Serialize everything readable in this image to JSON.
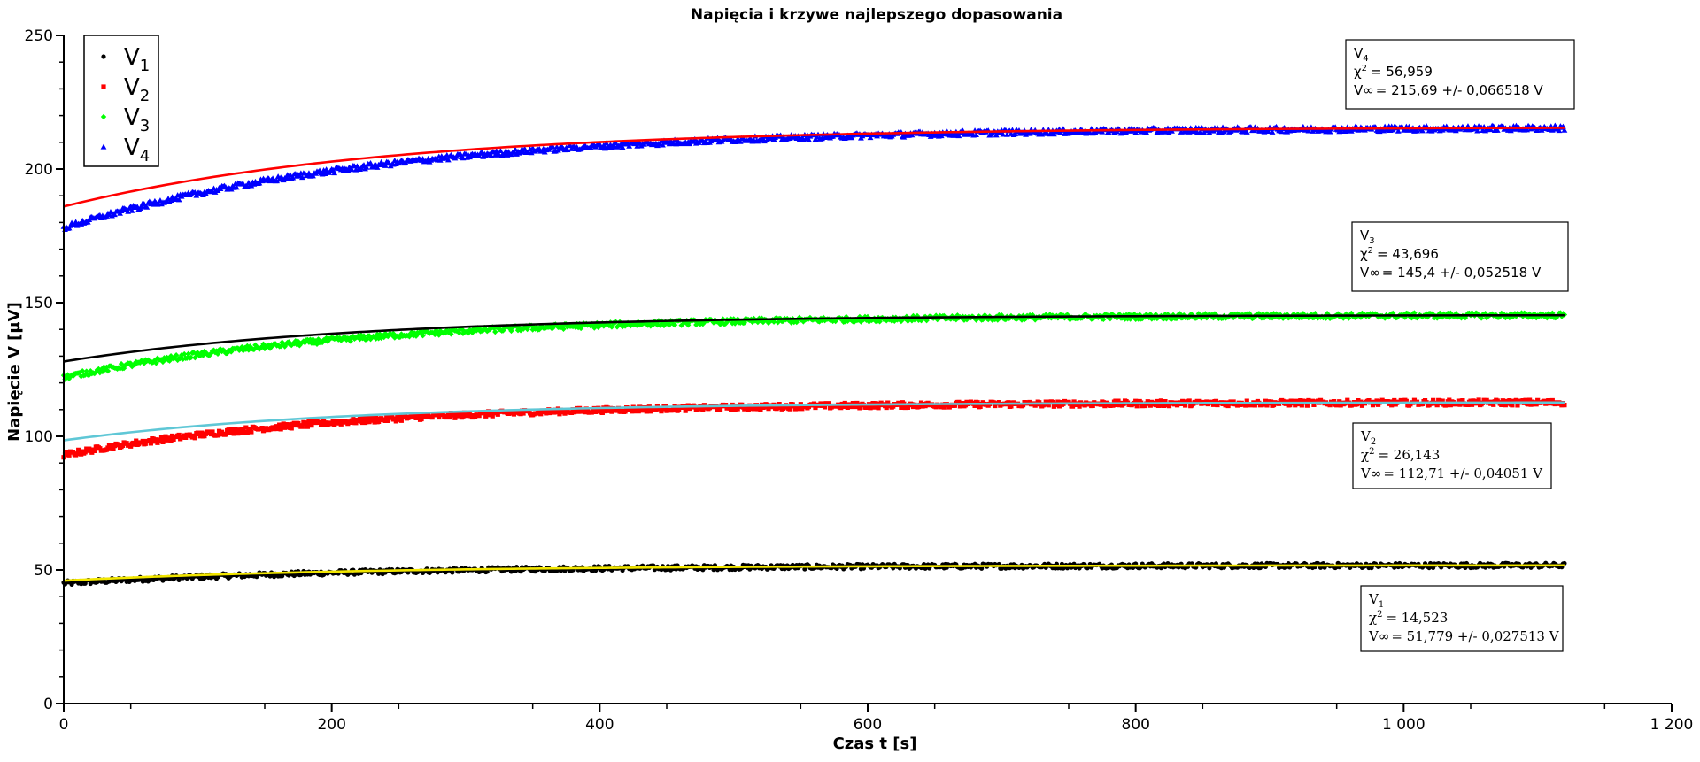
{
  "chart_data": {
    "type": "scatter",
    "title": "Napięcia i krzywe najlepszego dopasowania",
    "xlabel": "Czas t [s]",
    "ylabel": "Napięcie V [µV]",
    "xlim": [
      0,
      1200
    ],
    "ylim": [
      0,
      250
    ],
    "x_ticks": [
      0,
      200,
      400,
      600,
      800,
      1000,
      1200
    ],
    "x_tick_labels": [
      "0",
      "200",
      "400",
      "600",
      "800",
      "1 000",
      "1 200"
    ],
    "y_ticks": [
      0,
      50,
      100,
      150,
      200,
      250
    ],
    "y_tick_labels": [
      "0",
      "50",
      "100",
      "150",
      "200",
      "250"
    ],
    "grid": false,
    "legend_position": "top-left",
    "series": [
      {
        "name": "V",
        "sub": "1",
        "marker": "circle",
        "color": "#000000",
        "fit_color": "#f2e600",
        "x_max": 1120,
        "v_inf": 51.779,
        "v0": 45.0,
        "fit_v0": 46.0,
        "tau": 230,
        "noise": 0.9
      },
      {
        "name": "V",
        "sub": "2",
        "marker": "square",
        "color": "#ff0000",
        "fit_color": "#5fc7d6",
        "x_max": 1120,
        "v_inf": 112.71,
        "v0": 93.0,
        "fit_v0": 98.5,
        "tau": 210,
        "noise": 1.0
      },
      {
        "name": "V",
        "sub": "3",
        "marker": "diamond",
        "color": "#00ff00",
        "fit_color": "#000000",
        "x_max": 1120,
        "v_inf": 145.4,
        "v0": 122.0,
        "fit_v0": 128.0,
        "tau": 220,
        "noise": 1.0
      },
      {
        "name": "V",
        "sub": "4",
        "marker": "triangle",
        "color": "#0000ff",
        "fit_color": "#ff0000",
        "x_max": 1120,
        "v_inf": 215.69,
        "v0": 178.0,
        "fit_v0": 186.0,
        "tau": 240,
        "noise": 1.0
      }
    ],
    "annotations": [
      {
        "series": "V4",
        "label": "V",
        "sub": "4",
        "chi_label": "χ",
        "chi_sup": "2",
        "chi_value": "= 56,959",
        "vinf_label": "V∞",
        "vinf_text": "= 215,69 +/- 0,066518 V",
        "font": "sans"
      },
      {
        "series": "V3",
        "label": "V",
        "sub": "3",
        "chi_label": "χ",
        "chi_sup": "2",
        "chi_value": "= 43,696",
        "vinf_label": "V∞",
        "vinf_text": "= 145,4 +/- 0,052518 V",
        "font": "sans"
      },
      {
        "series": "V2",
        "label": "V",
        "sub": "2",
        "chi_label": "χ",
        "chi_sup": "2",
        "chi_value": "= 26,143",
        "vinf_label": "V∞",
        "vinf_text": "= 112,71 +/- 0,04051 V",
        "font": "serif"
      },
      {
        "series": "V1",
        "label": "V",
        "sub": "1",
        "chi_label": "χ",
        "chi_sup": "2",
        "chi_value": "= 14,523",
        "vinf_label": "V∞",
        "vinf_text": "= 51,779 +/- 0,027513 V",
        "font": "serif"
      }
    ]
  }
}
